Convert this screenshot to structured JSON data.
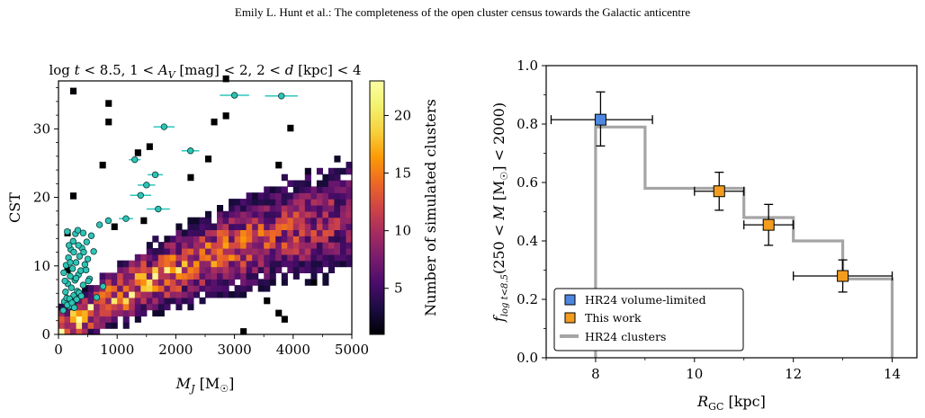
{
  "header": {
    "running_head": "Emily L. Hunt  et al.: The completeness of the open cluster census towards the Galactic anticentre"
  },
  "chart_data": [
    {
      "type": "heatmap",
      "title": "log t < 8.5, 1 < A_V [mag] < 2, 2 < d [kpc] < 4",
      "xlabel": "M_J [M☉]",
      "ylabel": "CST",
      "xlim": [
        0,
        5000
      ],
      "ylim": [
        0,
        37
      ],
      "xticks": [
        0,
        1000,
        2000,
        3000,
        4000,
        5000
      ],
      "yticks": [
        0,
        10,
        20,
        30
      ],
      "colorbar": {
        "label": "Number of simulated clusters",
        "range": [
          1,
          23
        ],
        "ticks": [
          5,
          10,
          15,
          20
        ],
        "colormap": "inferno"
      },
      "heatmap_bins": {
        "x_bin_width": 100,
        "y_bin_width": 0.9
      },
      "cyan_points": [
        [
          80,
          3.5
        ],
        [
          100,
          4.8
        ],
        [
          120,
          6.2
        ],
        [
          140,
          5.3
        ],
        [
          160,
          7.4
        ],
        [
          180,
          4.1
        ],
        [
          200,
          8.5
        ],
        [
          220,
          6.8
        ],
        [
          240,
          9.6
        ],
        [
          260,
          5.7
        ],
        [
          280,
          7.9
        ],
        [
          300,
          10.5
        ],
        [
          320,
          6.3
        ],
        [
          340,
          8.7
        ],
        [
          360,
          11.4
        ],
        [
          380,
          9.3
        ],
        [
          400,
          12.6
        ],
        [
          420,
          7.2
        ],
        [
          450,
          10.2
        ],
        [
          480,
          13.5
        ],
        [
          500,
          11.0
        ],
        [
          530,
          8.1
        ],
        [
          560,
          14.4
        ],
        [
          600,
          12.1
        ],
        [
          650,
          5.4
        ],
        [
          700,
          16.0
        ],
        [
          760,
          7.0
        ],
        [
          850,
          16.6
        ],
        [
          90,
          9.0
        ],
        [
          130,
          10.1
        ],
        [
          170,
          11.2
        ],
        [
          210,
          12.4
        ],
        [
          250,
          13.6
        ],
        [
          290,
          14.7
        ],
        [
          330,
          15.2
        ],
        [
          150,
          4.3
        ],
        [
          190,
          5.2
        ],
        [
          230,
          4.6
        ],
        [
          270,
          3.9
        ],
        [
          310,
          5.1
        ],
        [
          350,
          6.1
        ],
        [
          390,
          5.6
        ],
        [
          430,
          12.0
        ],
        [
          470,
          9.4
        ],
        [
          510,
          7.8
        ],
        [
          150,
          15.0
        ],
        [
          180,
          13.0
        ],
        [
          260,
          12.0
        ],
        [
          110,
          7.8
        ],
        [
          300,
          8.2
        ],
        [
          200,
          10.5
        ],
        [
          420,
          14.8
        ],
        [
          340,
          13.0
        ]
      ],
      "cyan_error_points": [
        {
          "x": 1150,
          "y": 16.9,
          "xerr": 120
        },
        {
          "x": 1400,
          "y": 20.3,
          "xerr": 180
        },
        {
          "x": 1500,
          "y": 21.8,
          "xerr": 150
        },
        {
          "x": 1700,
          "y": 18.3,
          "xerr": 200
        },
        {
          "x": 1650,
          "y": 23.3,
          "xerr": 130
        },
        {
          "x": 1800,
          "y": 30.3,
          "xerr": 180
        },
        {
          "x": 2250,
          "y": 26.8,
          "xerr": 150
        },
        {
          "x": 3000,
          "y": 34.9,
          "xerr": 250
        },
        {
          "x": 3800,
          "y": 34.8,
          "xerr": 280
        },
        {
          "x": 1300,
          "y": 25.5,
          "xerr": 100
        }
      ]
    },
    {
      "type": "scatter",
      "xlabel": "R_GC [kpc]",
      "ylabel": "f_{log t<8.5}(250 < M [M☉] < 2000)",
      "xlim": [
        7,
        14.5
      ],
      "ylim": [
        0,
        1.0
      ],
      "xticks": [
        8,
        10,
        12,
        14
      ],
      "yticks": [
        0.0,
        0.2,
        0.4,
        0.6,
        0.8,
        1.0
      ],
      "series": [
        {
          "name": "HR24 volume-limited",
          "color": "#4e86e0",
          "marker": "square",
          "points": [
            {
              "x": 8.1,
              "y": 0.815,
              "xerr": [
                1.0,
                1.05
              ],
              "yerr": [
                0.09,
                0.095
              ]
            }
          ]
        },
        {
          "name": "This work",
          "color": "#f39c1f",
          "marker": "square",
          "points": [
            {
              "x": 10.5,
              "y": 0.57,
              "xerr": [
                0.5,
                0.5
              ],
              "yerr": [
                0.065,
                0.065
              ]
            },
            {
              "x": 11.5,
              "y": 0.455,
              "xerr": [
                0.5,
                0.5
              ],
              "yerr": [
                0.07,
                0.07
              ]
            },
            {
              "x": 13.0,
              "y": 0.28,
              "xerr": [
                1.0,
                1.0
              ],
              "yerr": [
                0.055,
                0.055
              ]
            }
          ]
        },
        {
          "name": "HR24 clusters",
          "color": "#a5a5a5",
          "style": "step",
          "steps": [
            [
              8,
              0
            ],
            [
              8,
              0.79
            ],
            [
              9,
              0.79
            ],
            [
              9,
              0.58
            ],
            [
              11,
              0.58
            ],
            [
              11,
              0.48
            ],
            [
              12,
              0.48
            ],
            [
              12,
              0.4
            ],
            [
              13,
              0.4
            ],
            [
              13,
              0.27
            ],
            [
              14,
              0.27
            ],
            [
              14,
              0
            ]
          ]
        }
      ],
      "legend": {
        "location": "lower-left",
        "entries": [
          "HR24 volume-limited",
          "This work",
          "HR24 clusters"
        ]
      }
    }
  ],
  "labels": {
    "title_left": "log t < 8.5, 1 < A_V [mag] < 2, 2 < d [kpc] < 4",
    "colorbar_label": "Number of simulated clusters"
  }
}
